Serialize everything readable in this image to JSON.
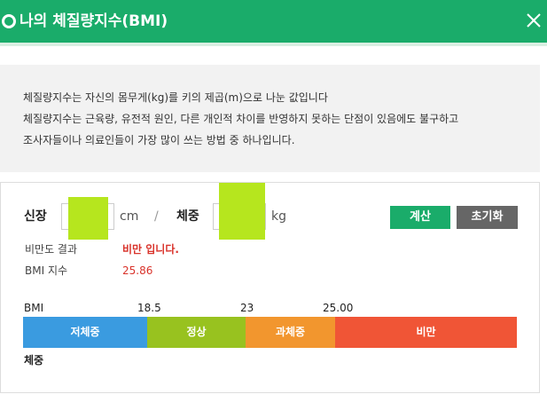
{
  "header": {
    "title": "나의 체질량지수(BMI)",
    "close_icon": "close-icon",
    "color": "#1aac6a"
  },
  "info": {
    "lines": [
      "체질량지수는 자신의 몸무게(kg)를 키의 제곱(m)으로 나눈 값입니다",
      "체질량지수는 근육량, 유전적 원인, 다른 개인적 차이를 반영하지 못하는 단점이 있음에도 불구하고",
      "조사자들이나 의료인들이 가장 많이 쓰는 방법 중 하나입니다."
    ]
  },
  "form": {
    "height_label": "신장",
    "height_value": "",
    "height_unit": "cm",
    "separator": "/",
    "weight_label": "체중",
    "weight_value": "",
    "weight_unit": "kg",
    "calc_button": "계산",
    "reset_button": "초기화"
  },
  "result": {
    "obesity_label": "비만도 결과",
    "obesity_value": "비만 입니다.",
    "bmi_label": "BMI 지수",
    "bmi_value": "25.86"
  },
  "scale": {
    "label": "BMI",
    "ticks": [
      "18.5",
      "23",
      "25.00"
    ],
    "segments": [
      {
        "label": "저체중",
        "color": "#3a9be0"
      },
      {
        "label": "정상",
        "color": "#98c21f"
      },
      {
        "label": "과체중",
        "color": "#f2962e"
      },
      {
        "label": "비만",
        "color": "#f05536"
      }
    ],
    "bottom_label": "체중"
  }
}
